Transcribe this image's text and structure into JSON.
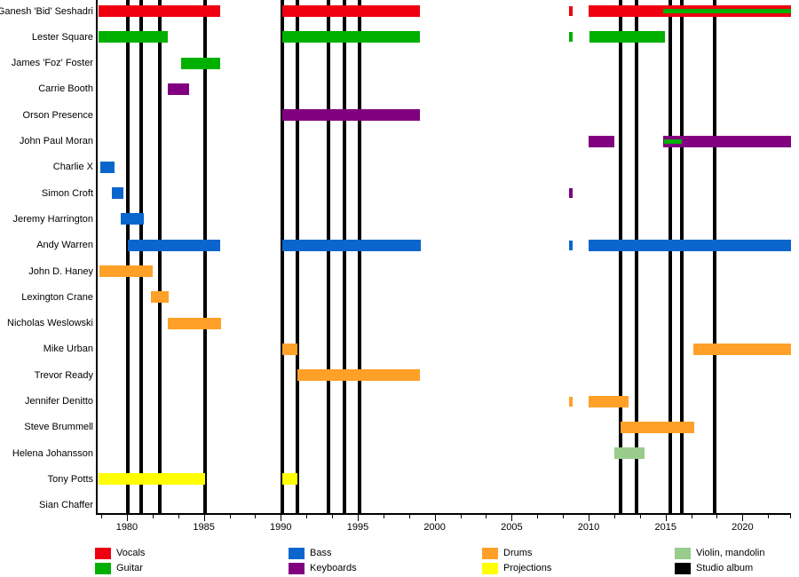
{
  "chart_data": {
    "type": "timeline",
    "title": "",
    "description": "Band members timeline with studio album release markers",
    "x_axis": {
      "start": 1978.1,
      "end": 2023.15,
      "major_tick_years": [
        1980,
        1985,
        1990,
        1995,
        2000,
        2005,
        2010,
        2015,
        2020
      ],
      "tick_labels": [
        "1980",
        "1985",
        "1990",
        "1995",
        "2000",
        "2005",
        "2010",
        "2015",
        "2020"
      ],
      "minor_tick_interval_years": 1.6667,
      "grid": false
    },
    "roles": [
      {
        "id": "vocals",
        "label": "Vocals",
        "color": "#ee0011"
      },
      {
        "id": "guitar",
        "label": "Guitar",
        "color": "#00b000"
      },
      {
        "id": "bass",
        "label": "Bass",
        "color": "#0a66cc"
      },
      {
        "id": "keyboards",
        "label": "Keyboards",
        "color": "#800080"
      },
      {
        "id": "drums",
        "label": "Drums",
        "color": "#ffa028"
      },
      {
        "id": "projections",
        "label": "Projections",
        "color": "#ffff00"
      },
      {
        "id": "violin",
        "label": "Violin, mandolin",
        "color": "#99cc8c"
      },
      {
        "id": "album",
        "label": "Studio album",
        "color": "#000000"
      }
    ],
    "legend": {
      "position": "bottom",
      "items": [
        {
          "label": "Vocals",
          "color": "#ee0011"
        },
        {
          "label": "Guitar",
          "color": "#00b000"
        },
        {
          "label": "Bass",
          "color": "#0a66cc"
        },
        {
          "label": "Keyboards",
          "color": "#800080"
        },
        {
          "label": "Drums",
          "color": "#ffa028"
        },
        {
          "label": "Projections",
          "color": "#ffff00"
        },
        {
          "label": "Violin, mandolin",
          "color": "#99cc8c"
        },
        {
          "label": "Studio album",
          "color": "#000000"
        }
      ]
    },
    "albums": [
      1980.05,
      1980.9,
      1982.15,
      1985.1,
      1990.1,
      1991.05,
      1993.1,
      1994.15,
      1995.1,
      2012.1,
      2013.1,
      2015.3,
      2016.05,
      2018.2
    ],
    "members": [
      {
        "name": "Ganesh 'Bid' Seshadri",
        "bars": [
          {
            "role": "vocals",
            "from": 1978.15,
            "to": 1986.05
          },
          {
            "role": "vocals",
            "from": 1990.1,
            "to": 1999.05
          },
          {
            "role": "vocals",
            "from": 2008.75,
            "to": 2008.95
          },
          {
            "role": "vocals",
            "from": 2010.0,
            "to": 2023.15
          }
        ],
        "overlays": [
          {
            "role": "guitar",
            "from": 2014.85,
            "to": 2023.15
          }
        ]
      },
      {
        "name": "Lester Square",
        "bars": [
          {
            "role": "guitar",
            "from": 1978.15,
            "to": 1982.65
          },
          {
            "role": "guitar",
            "from": 1990.1,
            "to": 1999.05
          },
          {
            "role": "guitar",
            "from": 2008.75,
            "to": 2008.95
          },
          {
            "role": "guitar",
            "from": 2010.05,
            "to": 2014.95
          }
        ],
        "overlays": []
      },
      {
        "name": "James 'Foz' Foster",
        "bars": [
          {
            "role": "guitar",
            "from": 1983.55,
            "to": 1986.05
          }
        ],
        "overlays": []
      },
      {
        "name": "Carrie Booth",
        "bars": [
          {
            "role": "keyboards",
            "from": 1982.65,
            "to": 1984.05
          }
        ],
        "overlays": []
      },
      {
        "name": "Orson Presence",
        "bars": [
          {
            "role": "keyboards",
            "from": 1990.1,
            "to": 1999.05
          }
        ],
        "overlays": []
      },
      {
        "name": "John Paul Moran",
        "bars": [
          {
            "role": "keyboards",
            "from": 2010.0,
            "to": 2011.65
          },
          {
            "role": "keyboards",
            "from": 2014.85,
            "to": 2023.15
          }
        ],
        "overlays": [
          {
            "role": "guitar",
            "from": 2014.9,
            "to": 2016.05
          }
        ]
      },
      {
        "name": "Charlie X",
        "bars": [
          {
            "role": "bass",
            "from": 1978.3,
            "to": 1979.2
          }
        ],
        "overlays": []
      },
      {
        "name": "Simon Croft",
        "bars": [
          {
            "role": "bass",
            "from": 1979.05,
            "to": 1979.75
          },
          {
            "role": "keyboards",
            "from": 2008.75,
            "to": 2008.95
          }
        ],
        "overlays": []
      },
      {
        "name": "Jeremy Harrington",
        "bars": [
          {
            "role": "bass",
            "from": 1979.6,
            "to": 1981.1
          }
        ],
        "overlays": []
      },
      {
        "name": "Andy Warren",
        "bars": [
          {
            "role": "bass",
            "from": 1980.05,
            "to": 1986.05
          },
          {
            "role": "bass",
            "from": 1990.1,
            "to": 1999.1
          },
          {
            "role": "bass",
            "from": 2008.75,
            "to": 2008.95
          },
          {
            "role": "bass",
            "from": 2010.0,
            "to": 2023.15
          }
        ],
        "overlays": []
      },
      {
        "name": "John D. Haney",
        "bars": [
          {
            "role": "drums",
            "from": 1978.2,
            "to": 1981.65
          }
        ],
        "overlays": []
      },
      {
        "name": "Lexington Crane",
        "bars": [
          {
            "role": "drums",
            "from": 1981.55,
            "to": 1982.7
          }
        ],
        "overlays": []
      },
      {
        "name": "Nicholas Weslowski",
        "bars": [
          {
            "role": "drums",
            "from": 1982.65,
            "to": 1986.1
          }
        ],
        "overlays": []
      },
      {
        "name": "Mike Urban",
        "bars": [
          {
            "role": "drums",
            "from": 1990.1,
            "to": 1991.05
          },
          {
            "role": "drums",
            "from": 2016.8,
            "to": 2023.15
          }
        ],
        "overlays": []
      },
      {
        "name": "Trevor Ready",
        "bars": [
          {
            "role": "drums",
            "from": 1991.05,
            "to": 1999.05
          }
        ],
        "overlays": []
      },
      {
        "name": "Jennifer Denitto",
        "bars": [
          {
            "role": "drums",
            "from": 2008.75,
            "to": 2008.95
          },
          {
            "role": "drums",
            "from": 2010.0,
            "to": 2012.6
          }
        ],
        "overlays": []
      },
      {
        "name": "Steve Brummell",
        "bars": [
          {
            "role": "drums",
            "from": 2012.05,
            "to": 2016.85
          }
        ],
        "overlays": []
      },
      {
        "name": "Helena Johansson",
        "bars": [
          {
            "role": "violin",
            "from": 2011.65,
            "to": 2013.65
          }
        ],
        "overlays": []
      },
      {
        "name": "Tony Potts",
        "bars": [
          {
            "role": "projections",
            "from": 1978.15,
            "to": 1985.1
          },
          {
            "role": "projections",
            "from": 1990.1,
            "to": 1991.05
          }
        ],
        "overlays": []
      },
      {
        "name": "Sian Chaffer",
        "bars": [],
        "overlays": []
      }
    ]
  }
}
